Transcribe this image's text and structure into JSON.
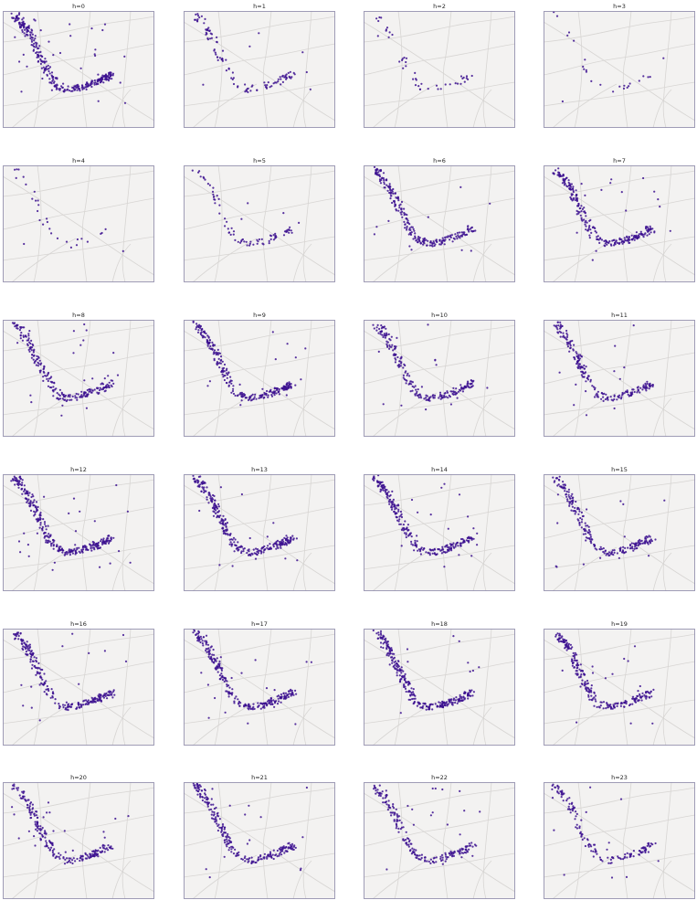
{
  "figure": {
    "panel_title_prefix": "h=",
    "hours": [
      0,
      1,
      2,
      3,
      4,
      5,
      6,
      7,
      8,
      9,
      10,
      11,
      12,
      13,
      14,
      15,
      16,
      17,
      18,
      19,
      20,
      21,
      22,
      23
    ],
    "point_counts": [
      330,
      110,
      45,
      25,
      30,
      80,
      240,
      260,
      230,
      260,
      210,
      210,
      300,
      280,
      260,
      220,
      240,
      260,
      290,
      240,
      220,
      240,
      200,
      150
    ],
    "colors": {
      "point": "#3b0f8f",
      "map_background": "#f3f2f1",
      "road": "#d7d5d3",
      "frame": "#8a86a8"
    }
  }
}
